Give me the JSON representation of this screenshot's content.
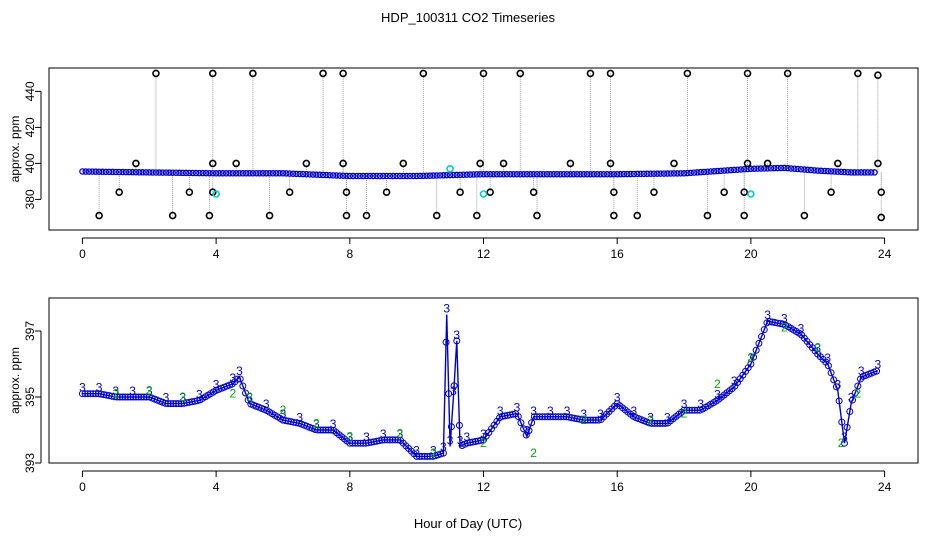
{
  "title": "HDP_100311  CO2 Timeseries",
  "xlabel": "Hour of Day (UTC)",
  "colors": {
    "axis": "#000000",
    "mark_3": "#0000cc",
    "mark_2": "#00aa00",
    "main_series": "#0000cc",
    "spike_lines": "#888888",
    "cyan_points": "#00cccc",
    "black_points": "#000000"
  },
  "chart_data": [
    {
      "type": "scatter",
      "ylabel": "approx. ppm",
      "xlim": [
        -1,
        25
      ],
      "ylim": [
        363,
        453
      ],
      "xticks": [
        0,
        4,
        8,
        12,
        16,
        20,
        24
      ],
      "yticks": [
        380,
        400,
        420,
        440
      ],
      "baseline_series": {
        "name": "main",
        "x": [
          0,
          2,
          4,
          6,
          8,
          10,
          12,
          14,
          16,
          18,
          20,
          21,
          22,
          23,
          23.8
        ],
        "y": [
          395.5,
          395,
          394.5,
          394.5,
          393,
          393,
          394,
          394,
          394,
          394.5,
          397,
          397.5,
          396,
          395,
          395
        ]
      },
      "high_outliers": {
        "name": "black high",
        "x": [
          2.2,
          3.9,
          5.1,
          7.2,
          7.8,
          10.2,
          12.0,
          13.1,
          15.2,
          15.8,
          18.1,
          19.9,
          21.1,
          23.2,
          23.8
        ],
        "y": [
          450,
          450,
          450,
          450,
          450,
          450,
          450,
          450,
          450,
          450,
          450,
          450,
          450,
          450,
          449
        ]
      },
      "mid_outliers": {
        "name": "black mid",
        "x": [
          1.6,
          3.9,
          4.6,
          6.7,
          7.8,
          9.6,
          11.9,
          12.6,
          14.6,
          15.8,
          17.7,
          19.9,
          20.5,
          22.6,
          23.8
        ],
        "y": [
          400,
          400,
          400,
          400,
          400,
          400,
          400,
          400,
          400,
          400,
          400,
          400,
          400,
          400,
          400
        ]
      },
      "low_outliers": {
        "name": "black low",
        "x": [
          1.1,
          3.2,
          3.9,
          6.2,
          7.9,
          9.1,
          11.3,
          12.2,
          13.5,
          15.9,
          17.1,
          19.2,
          19.8,
          22.4,
          23.9
        ],
        "y": [
          384,
          384,
          384,
          384,
          384,
          384,
          384,
          384,
          384,
          384,
          384,
          384,
          384,
          384,
          384
        ]
      },
      "bottom_outliers": {
        "name": "black bottom",
        "x": [
          0.5,
          2.7,
          3.8,
          5.6,
          7.9,
          8.5,
          10.6,
          11.8,
          13.6,
          15.9,
          16.6,
          18.7,
          19.8,
          21.6,
          23.9
        ],
        "y": [
          371,
          371,
          371,
          371,
          371,
          371,
          371,
          371,
          371,
          371,
          371,
          371,
          371,
          371,
          370
        ]
      },
      "cyan_points": {
        "x": [
          4.0,
          12.0,
          20.0,
          11.0
        ],
        "y": [
          383,
          383,
          383,
          397
        ]
      }
    },
    {
      "type": "line",
      "ylabel": "approx. ppm",
      "xlim": [
        -1,
        25
      ],
      "ylim": [
        393,
        398
      ],
      "xticks": [
        0,
        4,
        8,
        12,
        16,
        20,
        24
      ],
      "yticks": [
        393,
        395,
        397
      ],
      "series": [
        {
          "name": "3",
          "x": [
            0,
            0.5,
            1,
            1.5,
            2,
            2.5,
            3,
            3.5,
            4,
            4.5,
            4.7,
            5,
            5.5,
            6,
            6.5,
            7,
            7.5,
            8,
            8.5,
            9,
            9.5,
            10,
            10.5,
            10.8,
            10.9,
            11.0,
            11.1,
            11.2,
            11.3,
            11.5,
            12,
            12.5,
            13,
            13.3,
            13.5,
            14,
            14.5,
            15,
            15.5,
            16,
            16.5,
            17,
            17.5,
            18,
            18.5,
            19,
            19.5,
            20,
            20.5,
            21,
            21.5,
            22,
            22.3,
            22.6,
            22.8,
            23,
            23.3,
            23.8
          ],
          "y": [
            395.1,
            395.1,
            395.0,
            395.0,
            395.0,
            394.8,
            394.8,
            394.9,
            395.2,
            395.4,
            395.6,
            394.8,
            394.6,
            394.3,
            394.2,
            394.0,
            394.0,
            393.6,
            393.6,
            393.7,
            393.7,
            393.2,
            393.2,
            393.3,
            397.5,
            393.5,
            395.0,
            396.7,
            393.5,
            393.6,
            393.7,
            394.4,
            394.5,
            393.8,
            394.4,
            394.4,
            394.4,
            394.3,
            394.3,
            394.8,
            394.4,
            394.2,
            394.2,
            394.6,
            394.6,
            394.9,
            395.3,
            396.0,
            397.3,
            397.2,
            396.9,
            396.3,
            396.0,
            395.2,
            393.6,
            394.8,
            395.6,
            395.8
          ]
        },
        {
          "name": "2",
          "x": [
            1,
            2,
            3,
            4.5,
            5,
            6,
            7,
            8,
            9.5,
            10.5,
            12,
            13.5,
            15,
            17,
            18,
            19,
            20,
            21,
            22,
            22.7,
            23.2
          ],
          "y": [
            395.1,
            395.2,
            395.0,
            395.1,
            395.0,
            394.6,
            394.2,
            393.8,
            393.9,
            393.3,
            393.6,
            393.3,
            394.3,
            394.3,
            394.5,
            395.4,
            396.2,
            397.1,
            396.5,
            393.6,
            395.1
          ]
        }
      ]
    }
  ]
}
